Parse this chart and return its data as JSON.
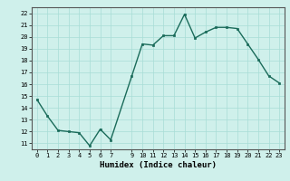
{
  "x": [
    0,
    1,
    2,
    3,
    4,
    5,
    6,
    7,
    9,
    10,
    11,
    12,
    13,
    14,
    15,
    16,
    17,
    18,
    19,
    20,
    21,
    22,
    23
  ],
  "y": [
    14.7,
    13.3,
    12.1,
    12.0,
    11.9,
    10.8,
    12.2,
    11.3,
    16.7,
    19.4,
    19.3,
    20.1,
    20.1,
    21.9,
    19.9,
    20.4,
    20.8,
    20.8,
    20.7,
    19.4,
    18.1,
    16.7,
    16.1
  ],
  "xticks": [
    0,
    1,
    2,
    3,
    4,
    5,
    6,
    7,
    9,
    10,
    11,
    12,
    13,
    14,
    15,
    16,
    17,
    18,
    19,
    20,
    21,
    22,
    23
  ],
  "yticks": [
    11,
    12,
    13,
    14,
    15,
    16,
    17,
    18,
    19,
    20,
    21,
    22
  ],
  "ylim": [
    10.5,
    22.5
  ],
  "xlim": [
    -0.5,
    23.5
  ],
  "xlabel": "Humidex (Indice chaleur)",
  "line_color": "#1a6b5a",
  "marker": "s",
  "markersize": 2.0,
  "linewidth": 1.0,
  "background_color": "#cff0eb",
  "grid_color": "#a8ddd6",
  "axis_color": "#555555"
}
